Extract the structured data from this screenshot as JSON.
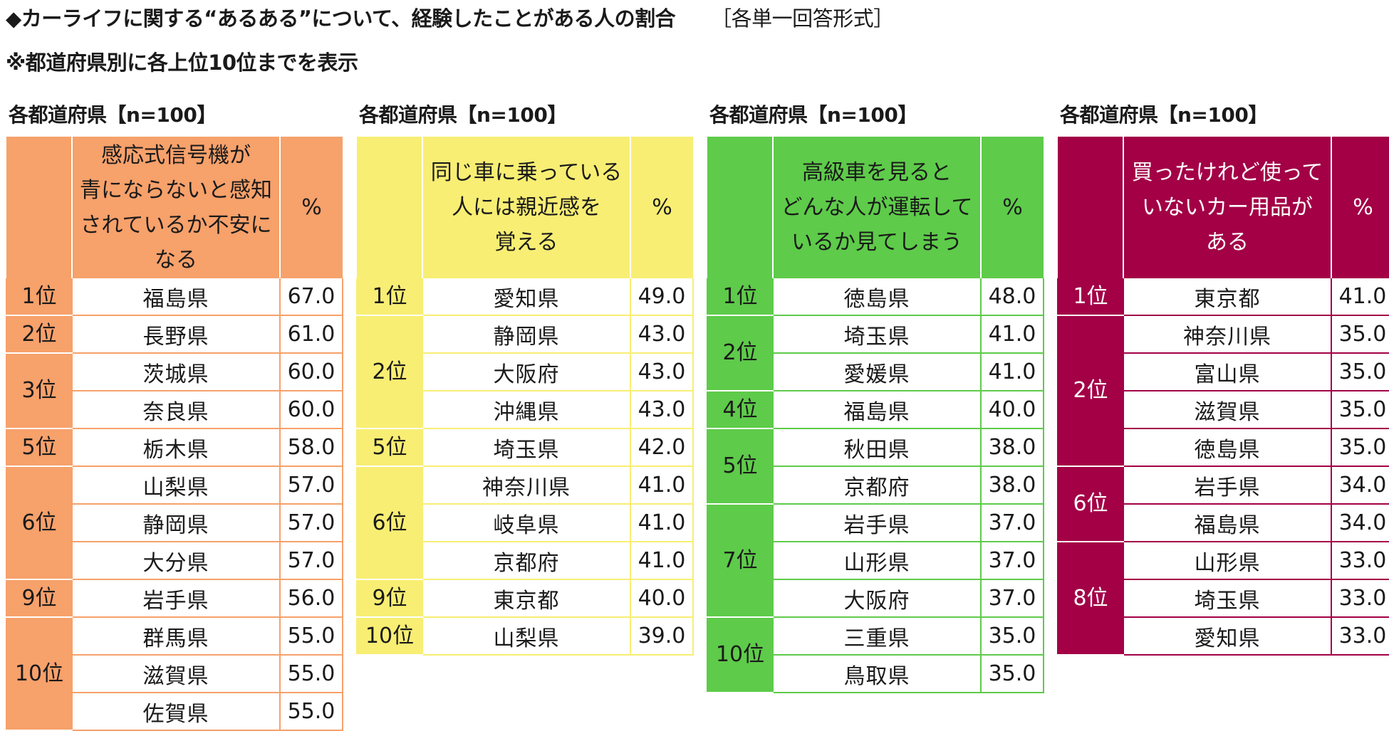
{
  "title": "◆カーライフに関する“あるある”について、経験したことがある人の割合",
  "answer_format": "［各単一回答形式］",
  "subtitle": "※都道府県別に各上位10位までを表示",
  "panels": [
    {
      "theme": "orange",
      "label": "各都道府県【n=100】",
      "item_lines": [
        "感応式信号機が",
        "青にならないと感知",
        "されているか不安に",
        "なる"
      ],
      "pct_header": "%",
      "rows": [
        {
          "rank": "1位",
          "span": 1,
          "pref": "福島県",
          "pct": "67.0"
        },
        {
          "rank": "2位",
          "span": 1,
          "pref": "長野県",
          "pct": "61.0"
        },
        {
          "rank": "3位",
          "span": 2,
          "pref": "茨城県",
          "pct": "60.0"
        },
        {
          "rank": "",
          "span": 0,
          "pref": "奈良県",
          "pct": "60.0"
        },
        {
          "rank": "5位",
          "span": 1,
          "pref": "栃木県",
          "pct": "58.0"
        },
        {
          "rank": "6位",
          "span": 3,
          "pref": "山梨県",
          "pct": "57.0"
        },
        {
          "rank": "",
          "span": 0,
          "pref": "静岡県",
          "pct": "57.0"
        },
        {
          "rank": "",
          "span": 0,
          "pref": "大分県",
          "pct": "57.0"
        },
        {
          "rank": "9位",
          "span": 1,
          "pref": "岩手県",
          "pct": "56.0"
        },
        {
          "rank": "10位",
          "span": 3,
          "pref": "群馬県",
          "pct": "55.0"
        },
        {
          "rank": "",
          "span": 0,
          "pref": "滋賀県",
          "pct": "55.0"
        },
        {
          "rank": "",
          "span": 0,
          "pref": "佐賀県",
          "pct": "55.0"
        }
      ]
    },
    {
      "theme": "yellow",
      "label": "各都道府県【n=100】",
      "item_lines": [
        "同じ車に乗っている",
        "人には親近感を",
        "覚える"
      ],
      "pct_header": "%",
      "rows": [
        {
          "rank": "1位",
          "span": 1,
          "pref": "愛知県",
          "pct": "49.0"
        },
        {
          "rank": "2位",
          "span": 3,
          "pref": "静岡県",
          "pct": "43.0"
        },
        {
          "rank": "",
          "span": 0,
          "pref": "大阪府",
          "pct": "43.0"
        },
        {
          "rank": "",
          "span": 0,
          "pref": "沖縄県",
          "pct": "43.0"
        },
        {
          "rank": "5位",
          "span": 1,
          "pref": "埼玉県",
          "pct": "42.0"
        },
        {
          "rank": "6位",
          "span": 3,
          "pref": "神奈川県",
          "pct": "41.0"
        },
        {
          "rank": "",
          "span": 0,
          "pref": "岐阜県",
          "pct": "41.0"
        },
        {
          "rank": "",
          "span": 0,
          "pref": "京都府",
          "pct": "41.0"
        },
        {
          "rank": "9位",
          "span": 1,
          "pref": "東京都",
          "pct": "40.0"
        },
        {
          "rank": "10位",
          "span": 1,
          "pref": "山梨県",
          "pct": "39.0"
        }
      ]
    },
    {
      "theme": "green",
      "label": "各都道府県【n=100】",
      "item_lines": [
        "高級車を見ると",
        "どんな人が運転して",
        "いるか見てしまう"
      ],
      "pct_header": "%",
      "rows": [
        {
          "rank": "1位",
          "span": 1,
          "pref": "徳島県",
          "pct": "48.0"
        },
        {
          "rank": "2位",
          "span": 2,
          "pref": "埼玉県",
          "pct": "41.0"
        },
        {
          "rank": "",
          "span": 0,
          "pref": "愛媛県",
          "pct": "41.0"
        },
        {
          "rank": "4位",
          "span": 1,
          "pref": "福島県",
          "pct": "40.0"
        },
        {
          "rank": "5位",
          "span": 2,
          "pref": "秋田県",
          "pct": "38.0"
        },
        {
          "rank": "",
          "span": 0,
          "pref": "京都府",
          "pct": "38.0"
        },
        {
          "rank": "7位",
          "span": 3,
          "pref": "岩手県",
          "pct": "37.0"
        },
        {
          "rank": "",
          "span": 0,
          "pref": "山形県",
          "pct": "37.0"
        },
        {
          "rank": "",
          "span": 0,
          "pref": "大阪府",
          "pct": "37.0"
        },
        {
          "rank": "10位",
          "span": 2,
          "pref": "三重県",
          "pct": "35.0"
        },
        {
          "rank": "",
          "span": 0,
          "pref": "鳥取県",
          "pct": "35.0"
        }
      ]
    },
    {
      "theme": "maroon",
      "label": "各都道府県【n=100】",
      "item_lines": [
        "買ったけれど使って",
        "いないカー用品が",
        "ある"
      ],
      "pct_header": "%",
      "rows": [
        {
          "rank": "1位",
          "span": 1,
          "pref": "東京都",
          "pct": "41.0"
        },
        {
          "rank": "2位",
          "span": 4,
          "pref": "神奈川県",
          "pct": "35.0"
        },
        {
          "rank": "",
          "span": 0,
          "pref": "富山県",
          "pct": "35.0"
        },
        {
          "rank": "",
          "span": 0,
          "pref": "滋賀県",
          "pct": "35.0"
        },
        {
          "rank": "",
          "span": 0,
          "pref": "徳島県",
          "pct": "35.0"
        },
        {
          "rank": "6位",
          "span": 2,
          "pref": "岩手県",
          "pct": "34.0"
        },
        {
          "rank": "",
          "span": 0,
          "pref": "福島県",
          "pct": "34.0"
        },
        {
          "rank": "8位",
          "span": 3,
          "pref": "山形県",
          "pct": "33.0"
        },
        {
          "rank": "",
          "span": 0,
          "pref": "埼玉県",
          "pct": "33.0"
        },
        {
          "rank": "",
          "span": 0,
          "pref": "愛知県",
          "pct": "33.0"
        }
      ]
    }
  ]
}
